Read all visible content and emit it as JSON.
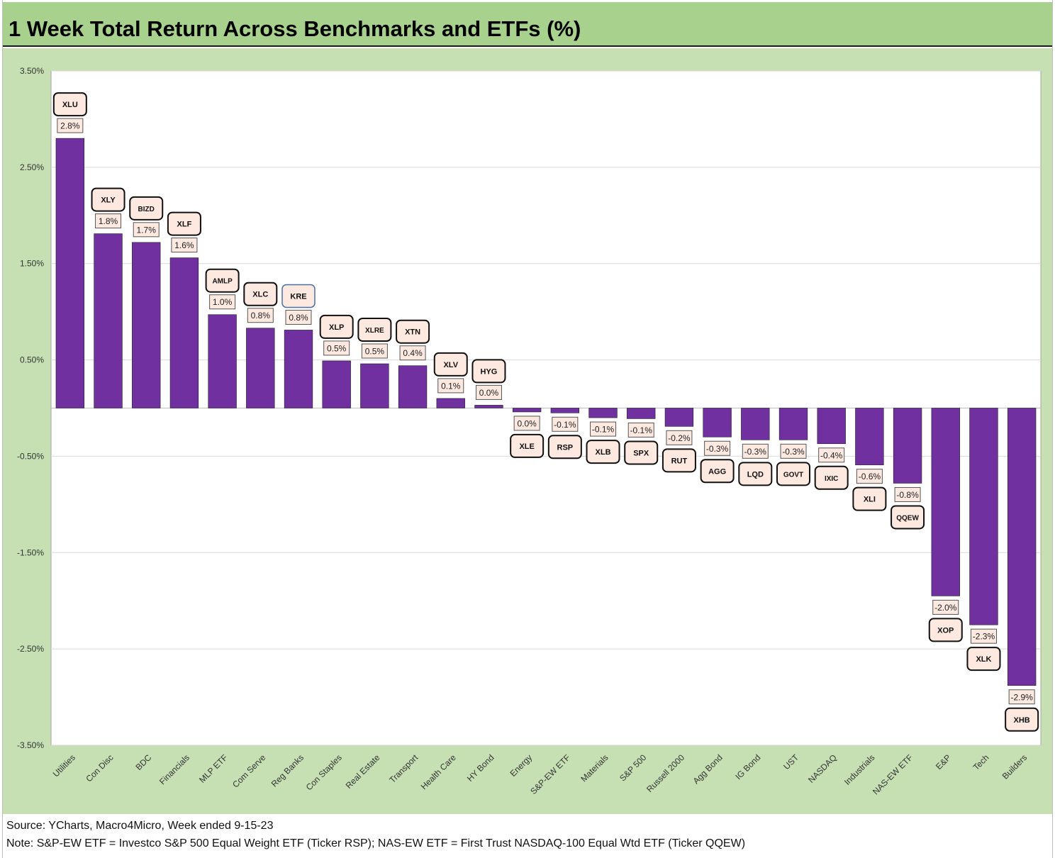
{
  "chart_data": {
    "type": "bar",
    "title": "1 Week Total Return Across Benchmarks and ETFs (%)",
    "ylim": [
      -3.5,
      3.5
    ],
    "y_ticks": [
      3.5,
      2.5,
      1.5,
      0.5,
      -0.5,
      -1.5,
      -2.5,
      -3.5
    ],
    "y_tick_labels": [
      "3.50%",
      "2.50%",
      "1.50%",
      "0.50%",
      "-0.50%",
      "-1.50%",
      "-2.50%",
      "-3.50%"
    ],
    "grid": true,
    "bar_color": "#7030a0",
    "categories": [
      "Utilities",
      "Con Disc",
      "BDC",
      "Financials",
      "MLP ETF",
      "Com Serve",
      "Reg Banks",
      "Con Staples",
      "Real Estate",
      "Transport",
      "Health Care",
      "HY Bond",
      "Energy",
      "S&P-EW ETF",
      "Materials",
      "S&P 500",
      "Russell 2000",
      "Agg Bond",
      "IG Bond",
      "UST",
      "NASDAQ",
      "Industrials",
      "NAS-EW ETF",
      "E&P",
      "Tech",
      "Builders"
    ],
    "tickers": [
      "XLU",
      "XLY",
      "BIZD",
      "XLF",
      "AMLP",
      "XLC",
      "KRE",
      "XLP",
      "XLRE",
      "XTN",
      "XLV",
      "HYG",
      "XLE",
      "RSP",
      "XLB",
      "SPX",
      "RUT",
      "AGG",
      "LQD",
      "GOVT",
      "IXIC",
      "XLI",
      "QQEW",
      "XOP",
      "XLK",
      "XHB"
    ],
    "values": [
      2.8,
      1.81,
      1.72,
      1.56,
      0.97,
      0.83,
      0.81,
      0.49,
      0.46,
      0.44,
      0.1,
      0.03,
      -0.04,
      -0.05,
      -0.1,
      -0.11,
      -0.19,
      -0.3,
      -0.33,
      -0.33,
      -0.37,
      -0.59,
      -0.78,
      -1.95,
      -2.25,
      -2.88
    ],
    "data_labels": [
      "2.8%",
      "1.8%",
      "1.7%",
      "1.6%",
      "1.0%",
      "0.8%",
      "0.8%",
      "0.5%",
      "0.5%",
      "0.4%",
      "0.1%",
      "0.0%",
      "0.0%",
      "-0.1%",
      "-0.1%",
      "-0.1%",
      "-0.2%",
      "-0.3%",
      "-0.3%",
      "-0.3%",
      "-0.4%",
      "-0.6%",
      "-0.8%",
      "-2.0%",
      "-2.3%",
      "-2.9%"
    ]
  },
  "footer": {
    "source": "Source: YCharts, Macro4Micro, Week ended 9-15-23",
    "note": "Note: S&P-EW ETF = Investco S&P 500 Equal Weight ETF (Ticker RSP); NAS-EW ETF = First Trust NASDAQ-100 Equal Wtd ETF (Ticker QQEW)"
  }
}
